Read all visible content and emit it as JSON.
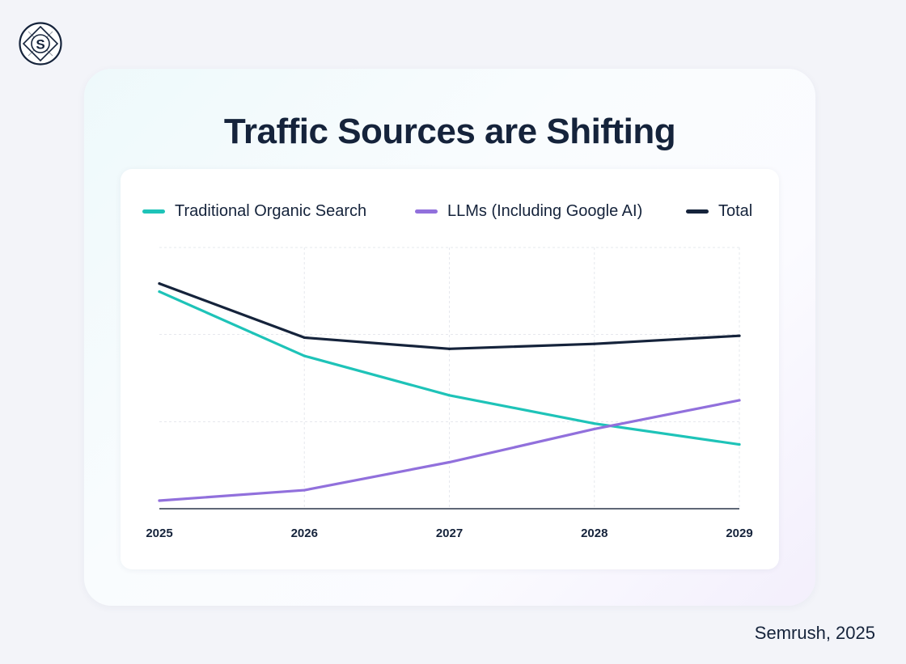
{
  "title": "Traffic Sources are Shifting",
  "footer": "Semrush, 2025",
  "logo_letter": "S",
  "legend": [
    {
      "label": "Traditional Organic Search",
      "color": "#1ec3b8"
    },
    {
      "label": "LLMs (Including Google AI)",
      "color": "#9170dc"
    },
    {
      "label": "Total",
      "color": "#15233b"
    }
  ],
  "chart_data": {
    "type": "line",
    "title": "Traffic Sources are Shifting",
    "xlabel": "",
    "ylabel": "",
    "categories": [
      "2025",
      "2026",
      "2027",
      "2028",
      "2029"
    ],
    "ylim": [
      0,
      100
    ],
    "grid": true,
    "legend_position": "top",
    "series": [
      {
        "name": "Traditional Organic Search",
        "color": "#1ec3b8",
        "values": [
          83.1,
          58.5,
          43.4,
          32.6,
          24.6
        ]
      },
      {
        "name": "LLMs (Including Google AI)",
        "color": "#9170dc",
        "values": [
          3.1,
          7.1,
          17.8,
          30.5,
          41.5
        ]
      },
      {
        "name": "Total",
        "color": "#15233b",
        "values": [
          86.2,
          65.5,
          61.2,
          63.1,
          66.2
        ]
      }
    ]
  }
}
